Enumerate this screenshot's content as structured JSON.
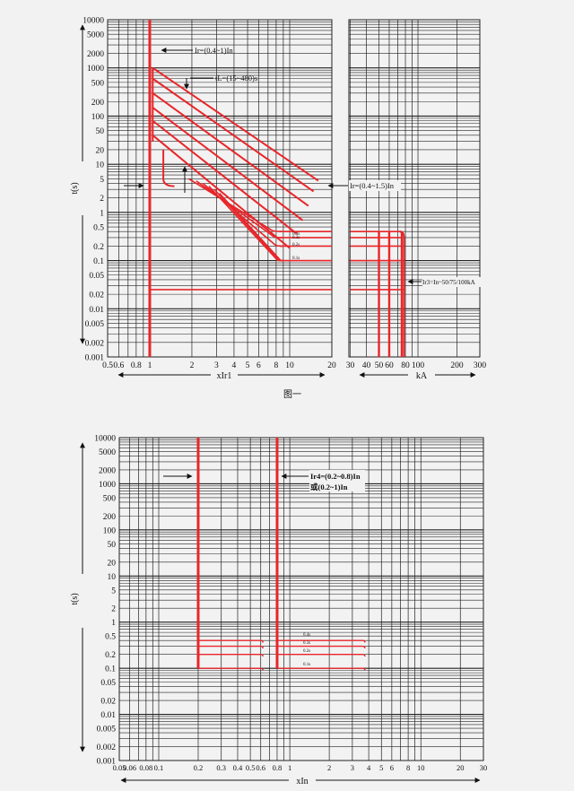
{
  "chart_data": [
    {
      "type": "line",
      "title": "",
      "caption": "图一",
      "ylabel": "t(s)",
      "xlabel_left": "xIr1",
      "xlabel_right": "kA",
      "y_ticks": [
        "10000",
        "5000",
        "2000",
        "1000",
        "500",
        "200",
        "100",
        "50",
        "20",
        "10",
        "5",
        "2",
        "1",
        "0.5",
        "0.2",
        "0.1",
        "0.05",
        "0.02",
        "0.01",
        "0.005",
        "0.002",
        "0.001"
      ],
      "y_scale": "log",
      "ylim": [
        0.001,
        10000
      ],
      "x_ticks_left": [
        "0.5",
        "0.6",
        "0.8",
        "1",
        "2",
        "3",
        "4",
        "5",
        "6",
        "8",
        "10",
        "20"
      ],
      "xlim_left": [
        0.5,
        20
      ],
      "x_ticks_right": [
        "30",
        "40",
        "50",
        "60",
        "80",
        "100",
        "200",
        "300"
      ],
      "xlim_right": [
        20,
        300
      ],
      "x_scale": "log",
      "annotations": [
        "Ir=(0.4~1)In",
        "tL=(15~480)s",
        "Ir=(0.4~1.5)In",
        "Ir3=In~50/75/100kA"
      ],
      "small_labels": [
        "0.4s",
        "0.3s",
        "0.2s",
        "0.1s"
      ],
      "series_colors": {
        "curve": "#e8262a",
        "grid": "#222222"
      }
    },
    {
      "type": "line",
      "title": "",
      "ylabel": "t(s)",
      "xlabel": "xIn",
      "y_ticks": [
        "10000",
        "5000",
        "2000",
        "1000",
        "500",
        "200",
        "100",
        "50",
        "20",
        "10",
        "5",
        "2",
        "1",
        "0.5",
        "0.2",
        "0.1",
        "0.05",
        "0.02",
        "0.01",
        "0.005",
        "0.002",
        "0.001"
      ],
      "y_scale": "log",
      "ylim": [
        0.001,
        10000
      ],
      "x_ticks": [
        "0.05",
        "0.06",
        "0.08",
        "0.1",
        "0.2",
        "0.3",
        "0.4",
        "0.5",
        "0.6",
        "0.8",
        "1",
        "2",
        "3",
        "4",
        "5",
        "6",
        "8",
        "10",
        "20",
        "30"
      ],
      "xlim": [
        0.05,
        30
      ],
      "x_scale": "log",
      "annotations": [
        "Ir4=(0.2~0.8)In",
        "或(0.2~1)In"
      ],
      "small_labels": [
        "0.4s",
        "0.3s",
        "0.2s",
        "0.1s"
      ],
      "series_colors": {
        "curve": "#e8262a",
        "grid": "#222222"
      }
    }
  ]
}
